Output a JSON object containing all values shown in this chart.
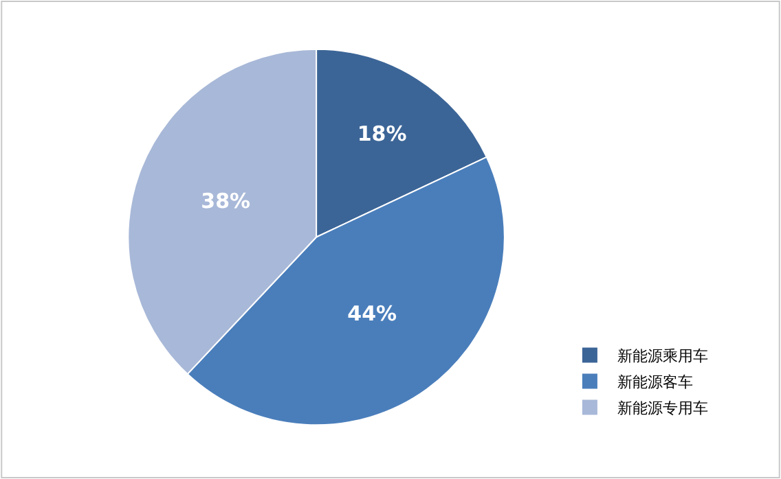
{
  "chart_data": {
    "type": "pie",
    "categories": [
      "新能源乘用车",
      "新能源客车",
      "新能源专用车"
    ],
    "values": [
      18,
      44,
      38
    ],
    "colors": [
      "#3c6597",
      "#4a7ebb",
      "#a8b8d8"
    ],
    "value_labels": [
      "18%",
      "44%",
      "38%"
    ],
    "legend": "bottom right"
  }
}
